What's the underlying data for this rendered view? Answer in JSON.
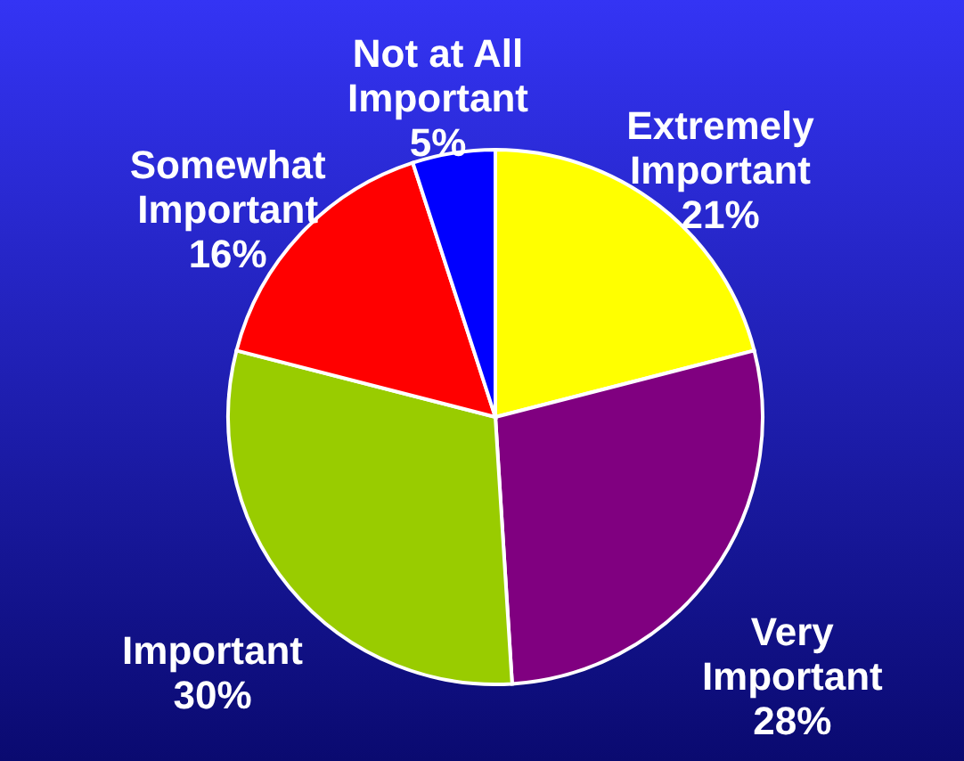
{
  "chart_data": {
    "type": "pie",
    "categories": [
      "Extremely Important",
      "Very Important",
      "Important",
      "Somewhat Important",
      "Not at All Important"
    ],
    "values": [
      21,
      28,
      30,
      16,
      5
    ],
    "value_labels": [
      "21%",
      "28%",
      "30%",
      "16%",
      "5%"
    ],
    "colors": [
      "#ffff00",
      "#800080",
      "#99cc00",
      "#ff0000",
      "#0000ff"
    ]
  }
}
